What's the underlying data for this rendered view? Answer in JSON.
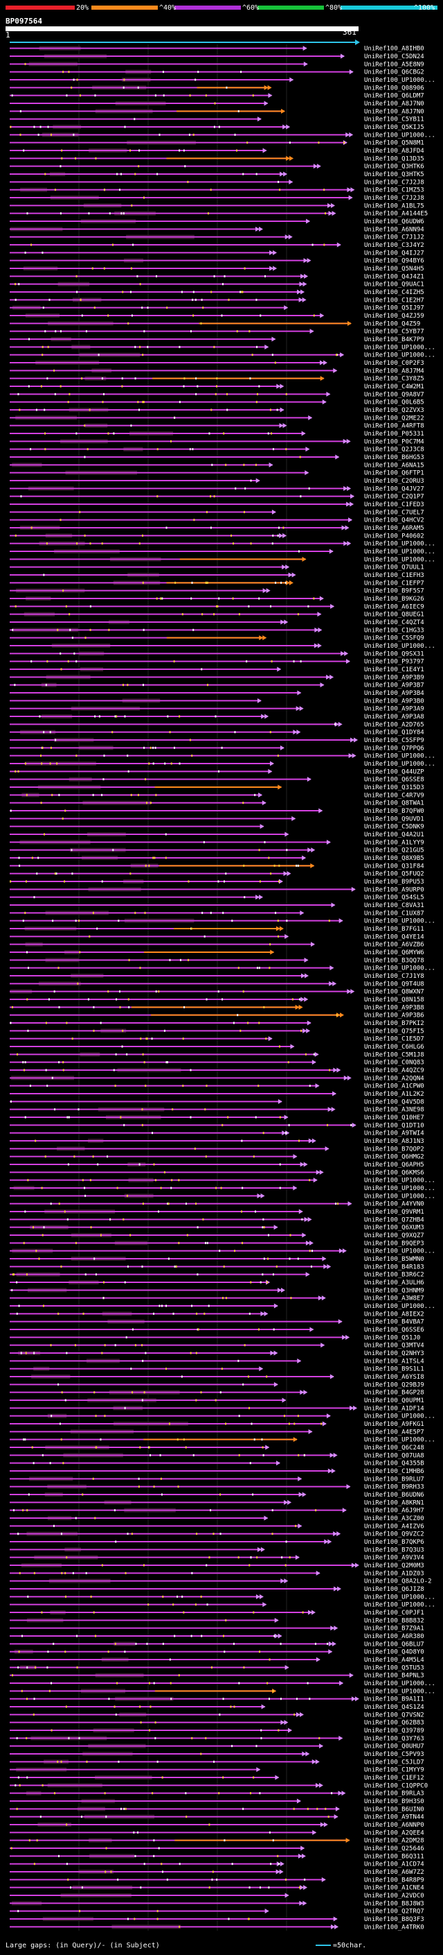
{
  "scale": {
    "labels": [
      "20%",
      "^40%",
      "^60%",
      "^80%",
      "^100%"
    ],
    "colors": [
      "#e8202a",
      "#ff8a1c",
      "#b030d8",
      "#17c23a",
      "#18c9d9"
    ]
  },
  "query": {
    "id": "BP097564",
    "start": "1",
    "end": "361"
  },
  "legend": {
    "text": "Large gaps: (in Query)/- (in Subject)",
    "scale_text": "=50char."
  },
  "chart_data": {
    "type": "alignment",
    "title": "BP097564",
    "query_length": 361,
    "rows": [
      "UniRef100_A8IHB0",
      "UniRef100_C5DN24",
      "UniRef100_A5E8N9",
      "UniRef100_Q6CBG2",
      "UniRef100_UP1000...",
      "UniRef100_Q08906",
      "UniRef100_Q6LDM7",
      "UniRef100_A8J7N0",
      "UniRef100_A8J7N0",
      "UniRef100_C5YB11",
      "UniRef100_Q5KIJ5",
      "UniRef100_UP1000...",
      "UniRef100_Q5N8M1",
      "UniRef100_A8JFD4",
      "UniRef100_Q13D35",
      "UniRef100_Q3HTK6",
      "UniRef100_Q3HTK5",
      "UniRef100_C7J2J8",
      "UniRef100_C1MZ53",
      "UniRef100_C7J2J8",
      "UniRef100_A1BL75",
      "UniRef100_A4144E5",
      "UniRef100_Q6UDW6",
      "UniRef100_A6NN94",
      "UniRef100_C7J1J2",
      "UniRef100_C3J4Y2",
      "UniRef100_Q4IJ27",
      "UniRef100_Q94BY6",
      "UniRef100_Q5N4H5",
      "UniRef100_Q4J4Z1",
      "UniRef100_Q9UAC1",
      "UniRef100_C4IZH5",
      "UniRef100_C1E2H7",
      "UniRef100_Q5IJ97",
      "UniRef100_Q4ZJ59",
      "UniRef100_Q4Z59",
      "UniRef100_C5YB77",
      "UniRef100_B4K7P9",
      "UniRef100_UP1000...",
      "UniRef100_UP1000...",
      "UniRef100_C0P2F3",
      "UniRef100_A8J7M4",
      "UniRef100_C3Y8Z5",
      "UniRef100_C4W2M1",
      "UniRef100_Q9A8V7",
      "UniRef100_Q0L6B5",
      "UniRef100_Q2ZVX3",
      "UniRef100_Q2ME22",
      "UniRef100_A4RFT8",
      "UniRef100_P05331",
      "UniRef100_P0C7M4",
      "UniRef100_Q2J3C8",
      "UniRef100_B6HG53",
      "UniRef100_A6NA15",
      "UniRef100_Q6FTP1",
      "UniRef100_C2ORU3",
      "UniRef100_Q4JV27",
      "UniRef100_C2Q1P7",
      "UniRef100_C1FED3",
      "UniRef100_C7UEL7",
      "UniRef100_Q4HCV2",
      "UniRef100_A6RAM5",
      "UniRef100_P40602",
      "UniRef100_UP1000...",
      "UniRef100_UP1000...",
      "UniRef100_UP1000...",
      "UniRef100_Q7UUL1",
      "UniRef100_C1EFH3",
      "UniRef100_C1EFP7",
      "UniRef100_B9F5S7",
      "UniRef100_B9KG26",
      "UniRef100_A6IEC9",
      "UniRef100_Q8UEG1",
      "UniRef100_C4QZT4",
      "UniRef100_C1HG33",
      "UniRef100_C5SFQ9",
      "UniRef100_UP1000...",
      "UniRef100_Q9SX31",
      "UniRef100_P93797",
      "UniRef100_C1E4Y1",
      "UniRef100_A9P3B9",
      "UniRef100_A9P3B7",
      "UniRef100_A9P3B4",
      "UniRef100_A9P3B0",
      "UniRef100_A9P3A9",
      "UniRef100_A9P3A8",
      "UniRef100_A2D765",
      "UniRef100_Q1DY84",
      "UniRef100_C5SFP9",
      "UniRef100_Q7PPQ6",
      "UniRef100_UP1000...",
      "UniRef100_UP1000...",
      "UniRef100_Q44UZP",
      "UniRef100_Q6SSE8",
      "UniRef100_Q315D3",
      "UniRef100_C4R7V9",
      "UniRef100_Q8TWA1",
      "UniRef100_B7QFW0",
      "UniRef100_Q9UVD1",
      "UniRef100_C5DNK9",
      "UniRef100_Q4A2U1",
      "UniRef100_A1LYY9",
      "UniRef100_Q21GU5",
      "UniRef100_Q8X9B5",
      "UniRef100_Q31F84",
      "UniRef100_Q5FUQ2",
      "UniRef100_B9PU53",
      "UniRef100_A9URP0",
      "UniRef100_Q54SL5",
      "UniRef100_C8VA31",
      "UniRef100_C1UX87",
      "UniRef100_UP1000...",
      "UniRef100_B7FG11",
      "UniRef100_Q4YE14",
      "UniRef100_A6VZB6",
      "UniRef100_Q6MYW6",
      "UniRef100_B3QQ78",
      "UniRef100_UP1000...",
      "UniRef100_C7J1Y8",
      "UniRef100_Q9T4U8",
      "UniRef100_Q8WXN7",
      "UniRef100_Q8N158",
      "UniRef100_A9P3B8",
      "UniRef100_A9P3B6",
      "UniRef100_B7PKI2",
      "UniRef100_Q75FI5",
      "UniRef100_C1E5D7",
      "UniRef100_C6HLG6",
      "UniRef100_C5M1J8",
      "UniRef100_C0NQ83",
      "UniRef100_A4QZC9",
      "UniRef100_A2QQN4",
      "UniRef100_A1CPW0",
      "UniRef100_A1L2K2",
      "UniRef100_Q4V5D8",
      "UniRef100_A3NE98",
      "UniRef100_Q10HE7",
      "UniRef100_Q1DT10",
      "UniRef100_A9TWI4",
      "UniRef100_A8J1N3",
      "UniRef100_B7QOP2",
      "UniRef100_Q6HMG2",
      "UniRef100_Q6APH5",
      "UniRef100_Q6KMS6",
      "UniRef100_UP1000...",
      "UniRef100_UP1000...",
      "UniRef100_UP1000...",
      "UniRef100_A4YVN0",
      "UniRef100_Q9VRM1",
      "UniRef100_Q7ZHB4",
      "UniRef100_Q6XUM3",
      "UniRef100_Q9XQZ7",
      "UniRef100_B9QEP3",
      "UniRef100_UP1000...",
      "UniRef100_B5WMN0",
      "UniRef100_B4R183",
      "UniRef100_B3R6C2",
      "UniRef100_A3ULH6",
      "UniRef100_Q3HNM9",
      "UniRef100_A3W8E7",
      "UniRef100_UP1000...",
      "UniRef100_A8IEX2",
      "UniRef100_B4VBA7",
      "UniRef100_Q6SSE6",
      "UniRef100_Q51J0",
      "UniRef100_Q3MTV4",
      "UniRef100_Q2NHY3",
      "UniRef100_A1TSL4",
      "UniRef100_B9S1L1",
      "UniRef100_A6YSI8",
      "UniRef100_Q29BJ9",
      "UniRef100_B4GP28",
      "UniRef100_Q0UPM1",
      "UniRef100_A1DF14",
      "UniRef100_UP1000...",
      "UniRef100_A9FKG1",
      "UniRef100_A4E5P7",
      "UniRef100_UP1000...",
      "UniRef100_Q6C248",
      "UniRef100_Q07UA8",
      "UniRef100_Q4355B",
      "UniRef100_C1MHB6",
      "UniRef100_B9RLU7",
      "UniRef100_B9RH33",
      "UniRef100_B6UDN6",
      "UniRef100_A8KRN1",
      "UniRef100_A6J9H7",
      "UniRef100_A3CZ00",
      "UniRef100_A4IZV6",
      "UniRef100_Q9VZC2",
      "UniRef100_B7QKP6",
      "UniRef100_B7Q3U3",
      "UniRef100_A9V3V4",
      "UniRef100_Q2M0M3",
      "UniRef100_A1DZ03",
      "UniRef100_Q8A2LO-2",
      "UniRef100_Q6JIZ8",
      "UniRef100_UP1000...",
      "UniRef100_UP1000...",
      "UniRef100_C0PJF1",
      "UniRef100_B8B832",
      "UniRef100_B7Z9A1",
      "UniRef100_A6R380",
      "UniRef100_Q6BLU7",
      "UniRef100_Q4D8Y0",
      "UniRef100_A4M5L4",
      "UniRef100_Q5TU53",
      "UniRef100_B4PNL3",
      "UniRef100_UP1000...",
      "UniRef100_UP1000...",
      "UniRef100_B9A1I1",
      "UniRef100_Q4S1Z4",
      "UniRef100_Q7VSN2",
      "UniRef100_Q62B83",
      "UniRef100_Q39789",
      "UniRef100_Q3Y763",
      "UniRef100_Q0UHU7",
      "UniRef100_C5PV93",
      "UniRef100_C5JLD7",
      "UniRef100_C1MYY9",
      "UniRef100_C1EF12",
      "UniRef100_C1QPPC0",
      "UniRef100_B9RLA3",
      "UniRef100_B9H3S0",
      "UniRef100_B6UIN0",
      "UniRef100_A9TN44",
      "UniRef100_A6NNP0",
      "UniRef100_A2QEE4",
      "UniRef100_A2DM28",
      "UniRef100_Q25646",
      "UniRef100_B6Q311",
      "UniRef100_A1CD74",
      "UniRef100_A6W7Z2",
      "UniRef100_B4R8P9",
      "UniRef100_A1CNE4",
      "UniRef100_A2VDC0",
      "UniRef100_B8J8W3",
      "UniRef100_Q2TRQ7",
      "UniRef100_B8Q3F3",
      "UniRef100_A4TRK0"
    ]
  }
}
